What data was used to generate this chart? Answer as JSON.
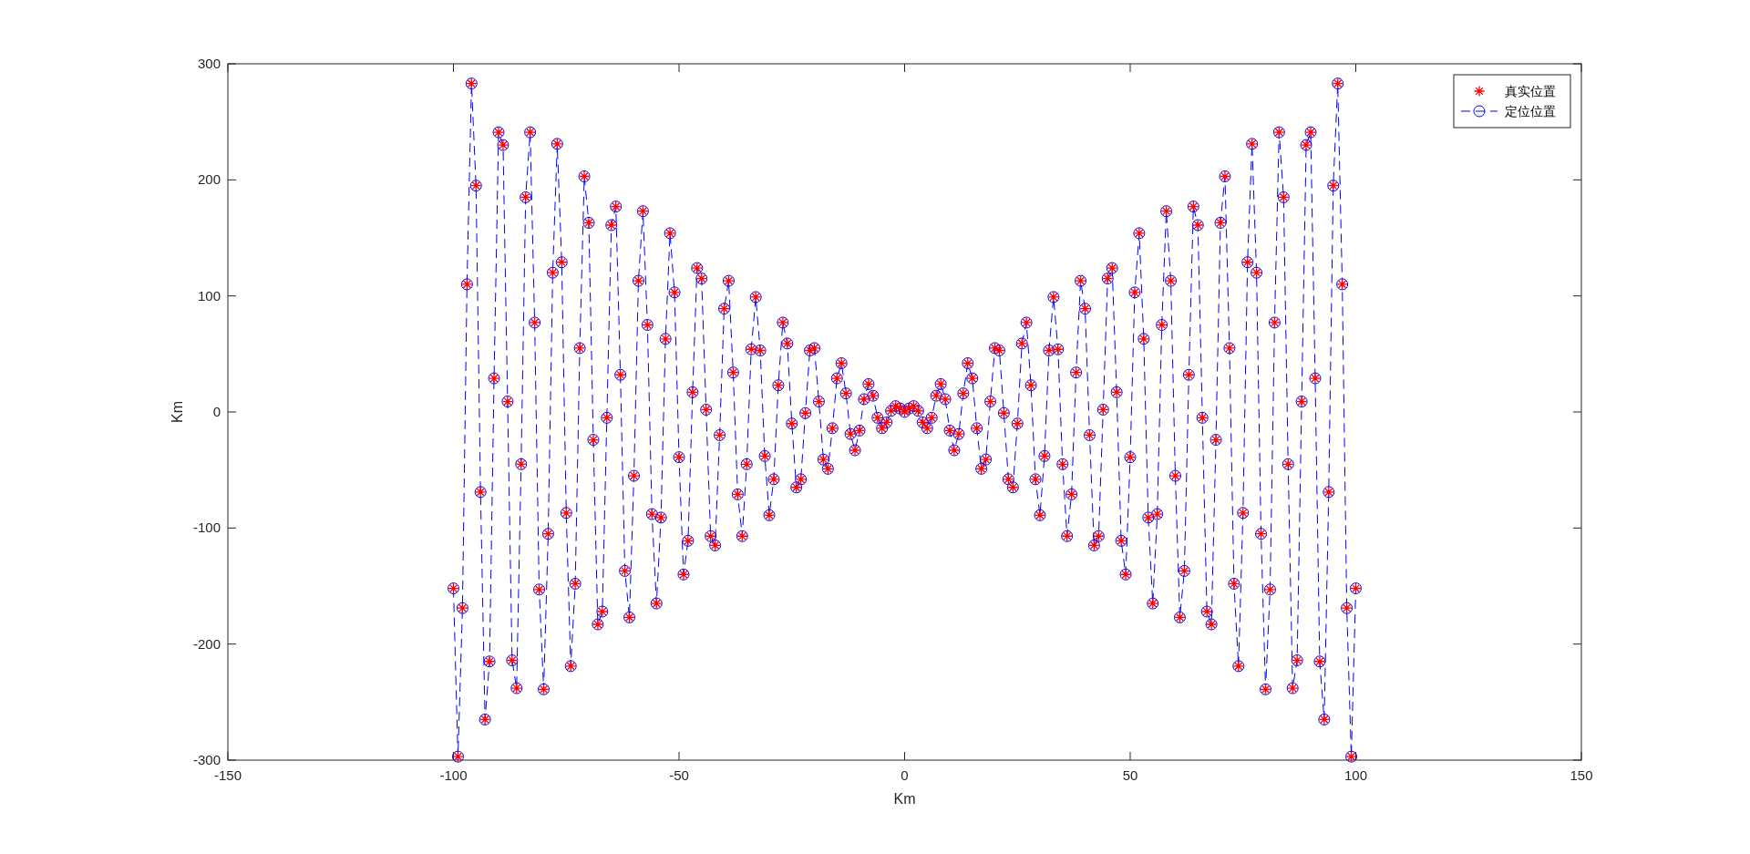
{
  "chart_data": {
    "type": "line",
    "xlabel": "Km",
    "ylabel": "Km",
    "xlim": [
      -150,
      150
    ],
    "xticks": [
      -150,
      -100,
      -50,
      0,
      50,
      100,
      150
    ],
    "ylim": [
      -300,
      300
    ],
    "yticks": [
      -300,
      -200,
      -100,
      0,
      100,
      200,
      300
    ],
    "grid": false,
    "legend": "top right",
    "x": [
      -100,
      -99,
      -98,
      -97,
      -96,
      -95,
      -94,
      -93,
      -92,
      -91,
      -90,
      -89,
      -88,
      -87,
      -86,
      -85,
      -84,
      -83,
      -82,
      -81,
      -80,
      -79,
      -78,
      -77,
      -76,
      -75,
      -74,
      -73,
      -72,
      -71,
      -70,
      -69,
      -68,
      -67,
      -66,
      -65,
      -64,
      -63,
      -62,
      -61,
      -60,
      -59,
      -58,
      -57,
      -56,
      -55,
      -54,
      -53,
      -52,
      -51,
      -50,
      -49,
      -48,
      -47,
      -46,
      -45,
      -44,
      -43,
      -42,
      -41,
      -40,
      -39,
      -38,
      -37,
      -36,
      -35,
      -34,
      -33,
      -32,
      -31,
      -30,
      -29,
      -28,
      -27,
      -26,
      -25,
      -24,
      -23,
      -22,
      -21,
      -20,
      -19,
      -18,
      -17,
      -16,
      -15,
      -14,
      -13,
      -12,
      -11,
      -10,
      -9,
      -8,
      -7,
      -6,
      -5,
      -4,
      -3,
      -2,
      -1,
      0,
      1,
      2,
      3,
      4,
      5,
      6,
      7,
      8,
      9,
      10,
      11,
      12,
      13,
      14,
      15,
      16,
      17,
      18,
      19,
      20,
      21,
      22,
      23,
      24,
      25,
      26,
      27,
      28,
      29,
      30,
      31,
      32,
      33,
      34,
      35,
      36,
      37,
      38,
      39,
      40,
      41,
      42,
      43,
      44,
      45,
      46,
      47,
      48,
      49,
      50,
      51,
      52,
      53,
      54,
      55,
      56,
      57,
      58,
      59,
      60,
      61,
      62,
      63,
      64,
      65,
      66,
      67,
      68,
      69,
      70,
      71,
      72,
      73,
      74,
      75,
      76,
      77,
      78,
      79,
      80,
      81,
      82,
      83,
      84,
      85,
      86,
      87,
      88,
      89,
      90,
      91,
      92,
      93,
      94,
      95,
      96,
      97,
      98,
      99,
      100
    ],
    "series": [
      {
        "name": "定位位置",
        "color": "#0000ff",
        "marker": "circle",
        "line_style": "dashed",
        "values": [
          -152,
          -297,
          -169,
          110,
          283,
          195,
          -69,
          -265,
          -215,
          29,
          241,
          230,
          9,
          -214,
          -238,
          -45,
          185,
          241,
          77,
          -153,
          -239,
          -105,
          120,
          231,
          129,
          -87,
          -219,
          -148,
          55,
          203,
          163,
          -24,
          -183,
          -172,
          -5,
          161,
          177,
          32,
          -137,
          -177,
          -55,
          113,
          173,
          75,
          -88,
          -165,
          -91,
          63,
          154,
          103,
          -39,
          -140,
          -111,
          17,
          124,
          115,
          2,
          -107,
          -115,
          -20,
          89,
          113,
          34,
          -71,
          -107,
          -45,
          54,
          99,
          53,
          -38,
          -89,
          -58,
          23,
          77,
          59,
          -10,
          -65,
          -58,
          -1,
          53,
          55,
          9,
          -41,
          -49,
          -14,
          29,
          42,
          16,
          -19,
          -33,
          -16,
          11,
          24,
          14,
          -5,
          -14,
          -9,
          1,
          5,
          3,
          0,
          3,
          5,
          1,
          -9,
          -14,
          -5,
          14,
          24,
          11,
          -16,
          -33,
          -19,
          16,
          42,
          29,
          -14,
          -49,
          -41,
          9,
          55,
          53,
          -1,
          -58,
          -65,
          -10,
          59,
          77,
          23,
          -58,
          -89,
          -38,
          53,
          99,
          54,
          -45,
          -107,
          -71,
          34,
          113,
          89,
          -20,
          -115,
          -107,
          2,
          115,
          124,
          17,
          -111,
          -140,
          -39,
          103,
          154,
          63,
          -91,
          -165,
          -88,
          75,
          173,
          113,
          -55,
          -177,
          -137,
          32,
          177,
          161,
          -5,
          -172,
          -183,
          -24,
          163,
          203,
          55,
          -148,
          -219,
          -87,
          129,
          231,
          120,
          -105,
          -239,
          -153,
          77,
          241,
          185,
          -45,
          -238,
          -214,
          9,
          230,
          241,
          29,
          -215,
          -265,
          -69,
          195,
          283,
          110,
          -169,
          -297,
          -152
        ]
      },
      {
        "name": "真实位置",
        "type": "scatter",
        "color": "#ff0000",
        "marker": "cross",
        "values": [
          -152,
          -297,
          -169,
          110,
          283,
          195,
          -69,
          -265,
          -215,
          29,
          241,
          230,
          9,
          -214,
          -238,
          -45,
          185,
          241,
          77,
          -153,
          -239,
          -105,
          120,
          231,
          129,
          -87,
          -219,
          -148,
          55,
          203,
          163,
          -24,
          -183,
          -172,
          -5,
          161,
          177,
          32,
          -137,
          -177,
          -55,
          113,
          173,
          75,
          -88,
          -165,
          -91,
          63,
          154,
          103,
          -39,
          -140,
          -111,
          17,
          124,
          115,
          2,
          -107,
          -115,
          -20,
          89,
          113,
          34,
          -71,
          -107,
          -45,
          54,
          99,
          53,
          -38,
          -89,
          -58,
          23,
          77,
          59,
          -10,
          -65,
          -58,
          -1,
          53,
          55,
          9,
          -41,
          -49,
          -14,
          29,
          42,
          16,
          -19,
          -33,
          -16,
          11,
          24,
          14,
          -5,
          -14,
          -9,
          1,
          5,
          3,
          0,
          3,
          5,
          1,
          -9,
          -14,
          -5,
          14,
          24,
          11,
          -16,
          -33,
          -19,
          16,
          42,
          29,
          -14,
          -49,
          -41,
          9,
          55,
          53,
          -1,
          -58,
          -65,
          -10,
          59,
          77,
          23,
          -58,
          -89,
          -38,
          53,
          99,
          54,
          -45,
          -107,
          -71,
          34,
          113,
          89,
          -20,
          -115,
          -107,
          2,
          115,
          124,
          17,
          -111,
          -140,
          -39,
          103,
          154,
          63,
          -91,
          -165,
          -88,
          75,
          173,
          113,
          -55,
          -177,
          -137,
          32,
          177,
          161,
          -5,
          -172,
          -183,
          -24,
          163,
          203,
          55,
          -148,
          -219,
          -87,
          129,
          231,
          120,
          -105,
          -239,
          -153,
          77,
          241,
          185,
          -45,
          -238,
          -214,
          9,
          230,
          241,
          29,
          -215,
          -265,
          -69,
          195,
          283,
          110,
          -169,
          -297,
          -152
        ]
      }
    ]
  }
}
